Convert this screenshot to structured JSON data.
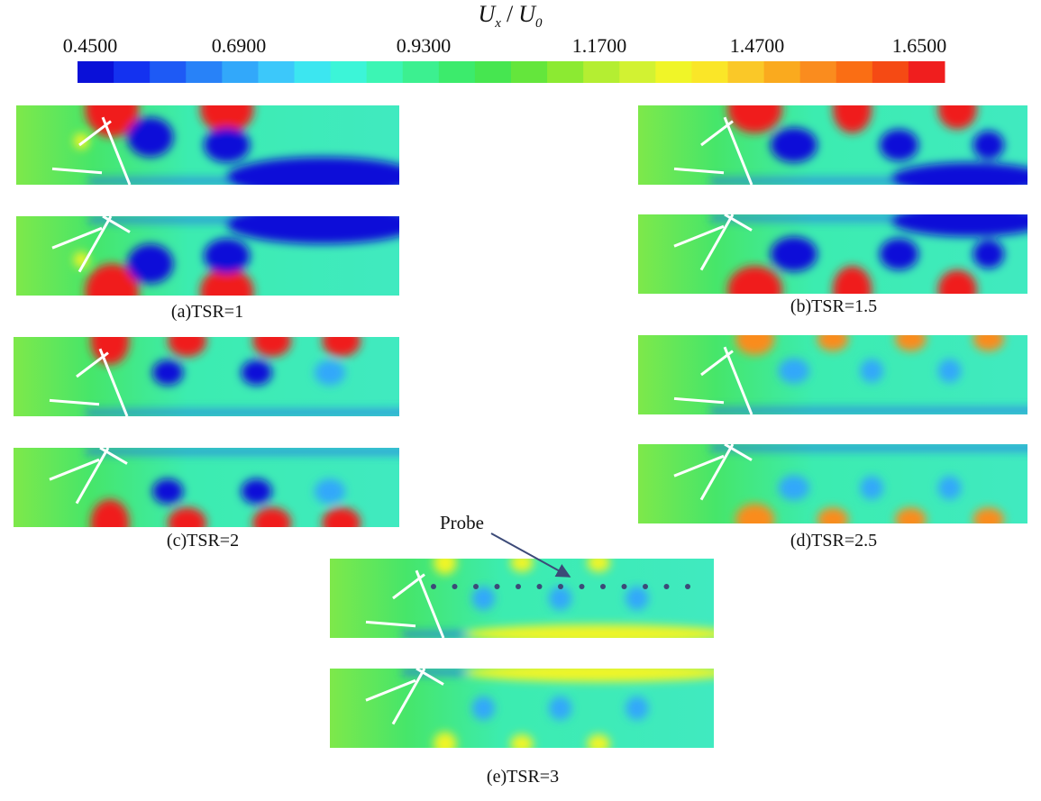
{
  "colorbar": {
    "title": {
      "u1": "U",
      "s1": "x",
      "sep": "/",
      "u2": "U",
      "s2": "0"
    },
    "labels": [
      "0.4500",
      "0.6900",
      "0.9300",
      "1.1700",
      "1.4700",
      "1.6500"
    ],
    "colors": [
      "#0a10d8",
      "#1432f0",
      "#1e5af5",
      "#2882f8",
      "#32a8fa",
      "#3cc8fa",
      "#3ce6f0",
      "#3cf5d8",
      "#3cf5b4",
      "#3cf090",
      "#3ceb6c",
      "#46e650",
      "#64e63c",
      "#8cea32",
      "#b4ee32",
      "#d2f232",
      "#f0f528",
      "#fae628",
      "#fac828",
      "#faaa1e",
      "#fa8c1e",
      "#fa6e14",
      "#f54a14",
      "#f01e1e"
    ]
  },
  "panels": [
    {
      "caption": "(a)TSR=1"
    },
    {
      "caption": "(b)TSR=1.5"
    },
    {
      "caption": "(c)TSR=2"
    },
    {
      "caption": "(d)TSR=2.5"
    },
    {
      "caption": "(e)TSR=3"
    }
  ],
  "annotation": {
    "probe": "Probe"
  }
}
